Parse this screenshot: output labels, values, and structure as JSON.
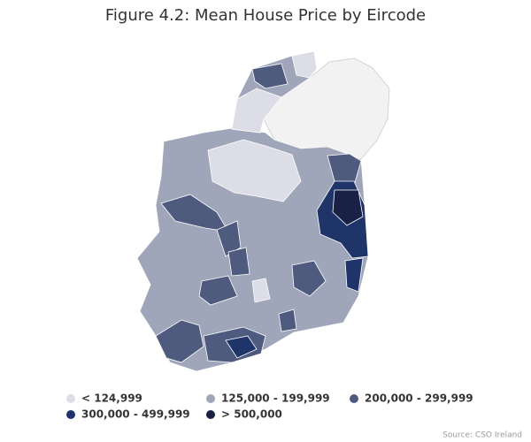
{
  "title": "Figure 4.2: Mean House Price by Eircode",
  "legend": [
    {
      "label": "< 124,999",
      "color": "#dcdde6"
    },
    {
      "label": "125,000 - 199,999",
      "color": "#a0a6ba"
    },
    {
      "label": "200,000 - 299,999",
      "color": "#4e5a7e"
    },
    {
      "label": "300,000 - 499,999",
      "color": "#1f3468"
    },
    {
      "label": "> 500,000",
      "color": "#192246"
    }
  ],
  "source": "Source: CSO Ireland"
}
